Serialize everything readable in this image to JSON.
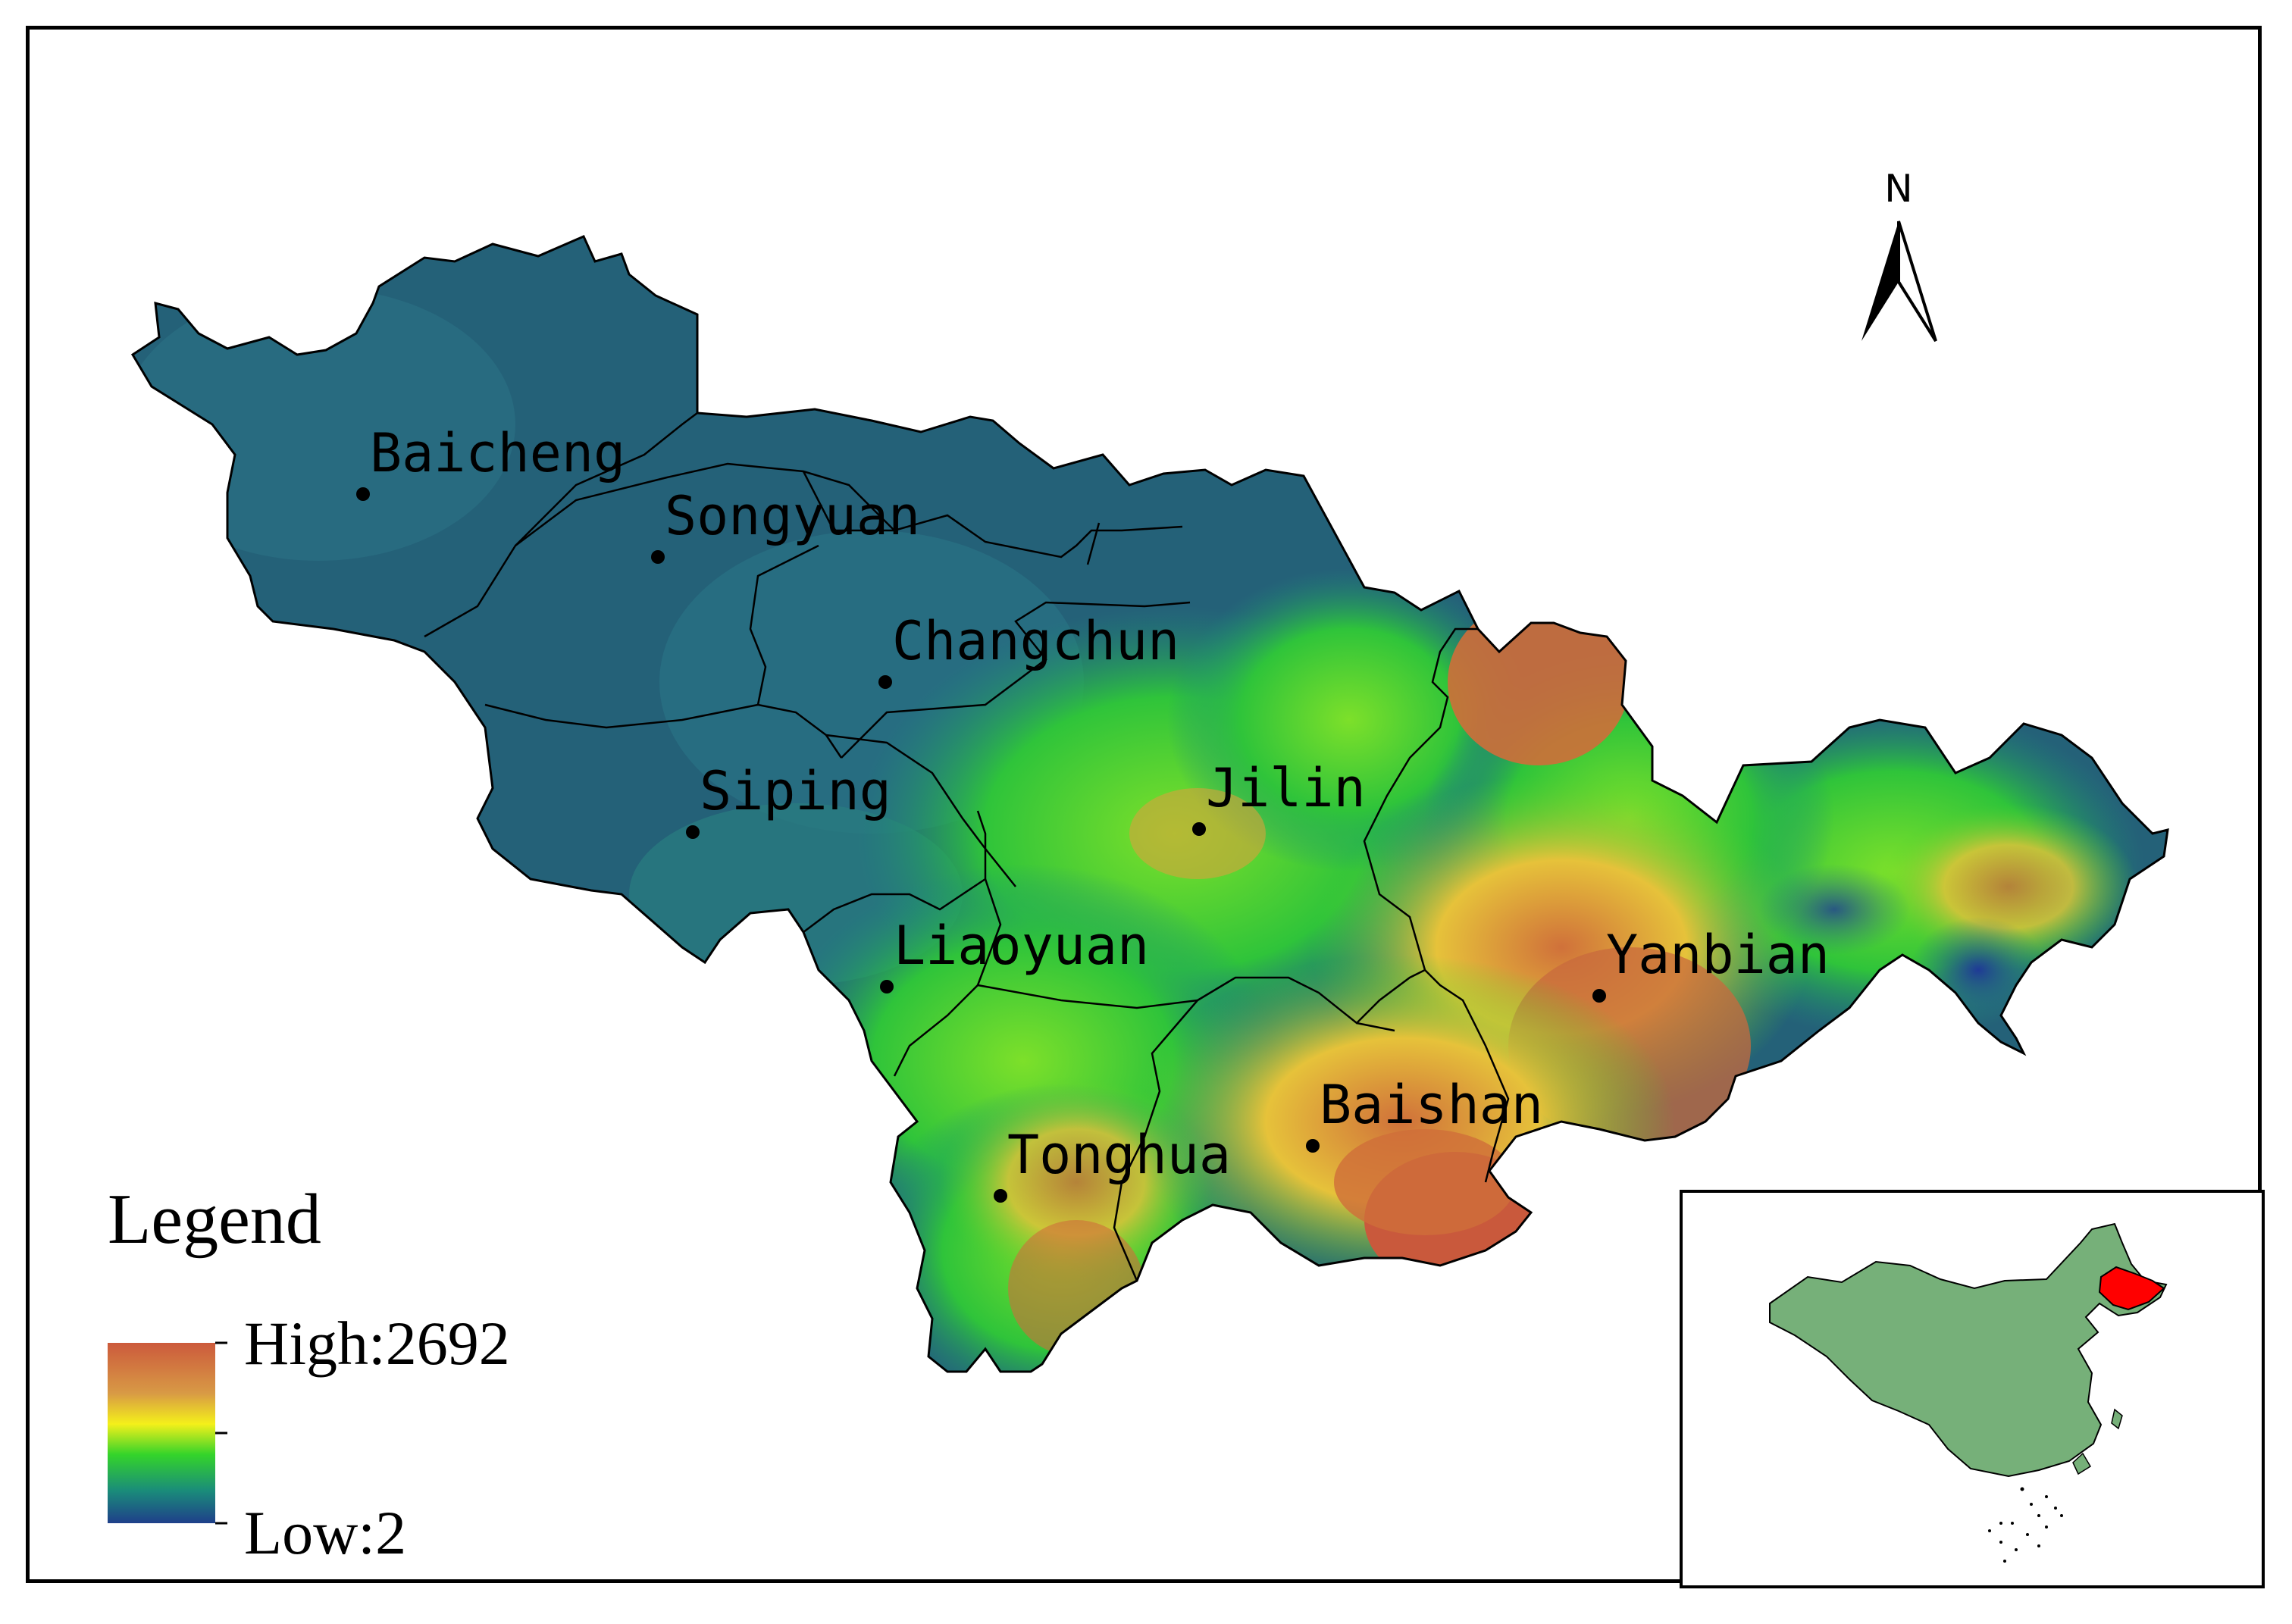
{
  "legend": {
    "title": "Legend",
    "high_label": "High:2692",
    "low_label": "Low:2",
    "color_ramp": [
      "#cc5a3c",
      "#d89a45",
      "#f4f01a",
      "#34d42a",
      "#1a8c7a",
      "#1f3f8a"
    ]
  },
  "north_arrow": {
    "label": "N"
  },
  "cities": [
    {
      "name": "Baicheng"
    },
    {
      "name": "Songyuan"
    },
    {
      "name": "Changchun"
    },
    {
      "name": "Jilin"
    },
    {
      "name": "Siping"
    },
    {
      "name": "Liaoyuan"
    },
    {
      "name": "Yanbian"
    },
    {
      "name": "Baishan"
    },
    {
      "name": "Tonghua"
    }
  ],
  "colors": {
    "lowland": "#24607a",
    "inset_country": "#76b079",
    "inset_highlight": "#ff0000",
    "border": "#000000"
  }
}
